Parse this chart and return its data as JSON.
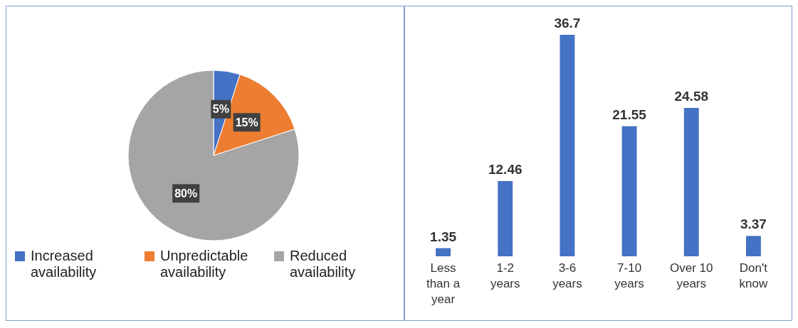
{
  "chart_data": [
    {
      "type": "pie",
      "categories": [
        "Increased availability",
        "Unpredictable availability",
        "Reduced availability"
      ],
      "values": [
        5,
        15,
        80
      ],
      "colors": [
        "#4472c4",
        "#ed7d31",
        "#a5a5a5"
      ],
      "value_labels": [
        "5%",
        "15%",
        "80%"
      ],
      "legend": "bottom"
    },
    {
      "type": "bar",
      "categories": [
        "Less than a year",
        "1-2 years",
        "3-6 years",
        "7-10 years",
        "Over 10 years",
        "Don't know"
      ],
      "values": [
        1.35,
        12.46,
        36.7,
        21.55,
        24.58,
        3.37
      ],
      "color": "#4472c4",
      "data_labels": true
    }
  ]
}
